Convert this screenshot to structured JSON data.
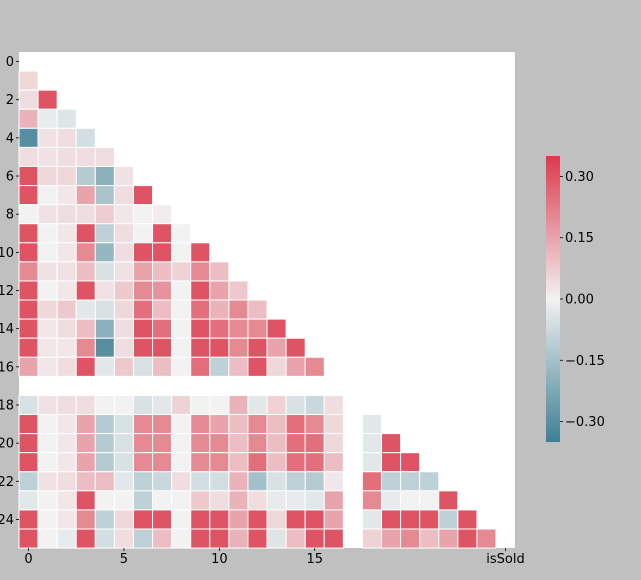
{
  "chart_data": {
    "type": "heatmap",
    "title": "",
    "xlabel": "",
    "ylabel": "",
    "mask": "upper-triangle-including-diagonal",
    "x_tick_labels": [
      "0",
      "5",
      "10",
      "15",
      "isSold"
    ],
    "y_tick_labels": [
      "0",
      "2",
      "4",
      "6",
      "8",
      "10",
      "12",
      "14",
      "16",
      "18",
      "20",
      "22",
      "24"
    ],
    "colorbar": {
      "ticks": [
        "0.30",
        "0.15",
        "0.00",
        "−0.15",
        "−0.30"
      ],
      "range": [
        -0.35,
        0.35
      ],
      "low_color": "#3d7f94",
      "mid_color": "#f2f2f2",
      "high_color": "#dc3a4c"
    },
    "matrix": [
      [
        null,
        null,
        null,
        null,
        null,
        null,
        null,
        null,
        null,
        null,
        null,
        null,
        null,
        null,
        null,
        null,
        null,
        null,
        null,
        null,
        null,
        null,
        null,
        null,
        null,
        null
      ],
      [
        0.05,
        null,
        null,
        null,
        null,
        null,
        null,
        null,
        null,
        null,
        null,
        null,
        null,
        null,
        null,
        null,
        null,
        null,
        null,
        null,
        null,
        null,
        null,
        null,
        null,
        null
      ],
      [
        0.04,
        0.3,
        null,
        null,
        null,
        null,
        null,
        null,
        null,
        null,
        null,
        null,
        null,
        null,
        null,
        null,
        null,
        null,
        null,
        null,
        null,
        null,
        null,
        null,
        null,
        null
      ],
      [
        0.12,
        -0.02,
        -0.04,
        null,
        null,
        null,
        null,
        null,
        null,
        null,
        null,
        null,
        null,
        null,
        null,
        null,
        null,
        null,
        null,
        null,
        null,
        null,
        null,
        null,
        null,
        null
      ],
      [
        -0.3,
        0.03,
        0.04,
        -0.06,
        null,
        null,
        null,
        null,
        null,
        null,
        null,
        null,
        null,
        null,
        null,
        null,
        null,
        null,
        null,
        null,
        null,
        null,
        null,
        null,
        null,
        null
      ],
      [
        0.04,
        0.03,
        0.04,
        0.04,
        0.04,
        null,
        null,
        null,
        null,
        null,
        null,
        null,
        null,
        null,
        null,
        null,
        null,
        null,
        null,
        null,
        null,
        null,
        null,
        null,
        null,
        null
      ],
      [
        0.3,
        0.05,
        0.05,
        -0.12,
        -0.2,
        0.03,
        null,
        null,
        null,
        null,
        null,
        null,
        null,
        null,
        null,
        null,
        null,
        null,
        null,
        null,
        null,
        null,
        null,
        null,
        null,
        null
      ],
      [
        0.3,
        0.0,
        0.02,
        0.15,
        -0.14,
        0.04,
        0.3,
        null,
        null,
        null,
        null,
        null,
        null,
        null,
        null,
        null,
        null,
        null,
        null,
        null,
        null,
        null,
        null,
        null,
        null,
        null
      ],
      [
        0.0,
        0.03,
        0.04,
        0.04,
        0.07,
        0.02,
        0.0,
        0.01,
        null,
        null,
        null,
        null,
        null,
        null,
        null,
        null,
        null,
        null,
        null,
        null,
        null,
        null,
        null,
        null,
        null,
        null
      ],
      [
        0.3,
        0.0,
        0.02,
        0.3,
        -0.1,
        0.04,
        0.0,
        0.3,
        0.0,
        null,
        null,
        null,
        null,
        null,
        null,
        null,
        null,
        null,
        null,
        null,
        null,
        null,
        null,
        null,
        null,
        null
      ],
      [
        0.3,
        0.0,
        0.02,
        0.2,
        -0.18,
        0.04,
        0.3,
        0.3,
        0.0,
        0.3,
        null,
        null,
        null,
        null,
        null,
        null,
        null,
        null,
        null,
        null,
        null,
        null,
        null,
        null,
        null,
        null
      ],
      [
        0.2,
        0.03,
        0.03,
        0.1,
        -0.05,
        0.03,
        0.15,
        0.1,
        0.06,
        0.2,
        0.1,
        null,
        null,
        null,
        null,
        null,
        null,
        null,
        null,
        null,
        null,
        null,
        null,
        null,
        null,
        null
      ],
      [
        0.3,
        0.0,
        0.02,
        0.3,
        0.03,
        0.08,
        0.2,
        0.18,
        0.0,
        0.3,
        0.15,
        0.08,
        null,
        null,
        null,
        null,
        null,
        null,
        null,
        null,
        null,
        null,
        null,
        null,
        null,
        null
      ],
      [
        0.3,
        0.05,
        0.08,
        -0.03,
        -0.05,
        0.05,
        0.25,
        0.1,
        0.0,
        0.25,
        0.12,
        0.2,
        0.1,
        null,
        null,
        null,
        null,
        null,
        null,
        null,
        null,
        null,
        null,
        null,
        null,
        null
      ],
      [
        0.3,
        0.02,
        0.04,
        0.1,
        -0.2,
        0.04,
        0.3,
        0.25,
        0.0,
        0.3,
        0.25,
        0.2,
        0.2,
        0.3,
        null,
        null,
        null,
        null,
        null,
        null,
        null,
        null,
        null,
        null,
        null,
        null
      ],
      [
        0.3,
        0.02,
        0.02,
        0.2,
        -0.3,
        0.04,
        0.3,
        0.3,
        0.0,
        0.3,
        0.3,
        0.2,
        0.3,
        0.15,
        0.3,
        null,
        null,
        null,
        null,
        null,
        null,
        null,
        null,
        null,
        null,
        null
      ],
      [
        0.15,
        0.02,
        0.04,
        0.3,
        -0.03,
        0.08,
        -0.05,
        0.1,
        0.0,
        0.25,
        -0.1,
        0.1,
        0.3,
        0.05,
        0.15,
        0.2,
        null,
        null,
        null,
        null,
        null,
        null,
        null,
        null,
        null,
        null
      ],
      [
        null,
        null,
        null,
        null,
        null,
        null,
        null,
        null,
        null,
        null,
        null,
        null,
        null,
        null,
        null,
        null,
        null,
        null,
        null,
        null,
        null,
        null,
        null,
        null,
        null,
        null
      ],
      [
        -0.05,
        0.03,
        0.04,
        0.04,
        0.0,
        0.0,
        -0.05,
        -0.03,
        0.06,
        0.0,
        0.0,
        0.12,
        -0.03,
        0.06,
        -0.05,
        -0.08,
        0.04,
        null,
        null,
        null,
        null,
        null,
        null,
        null,
        null,
        null
      ],
      [
        0.3,
        0.0,
        0.02,
        0.15,
        -0.12,
        -0.05,
        0.2,
        0.2,
        0.0,
        0.2,
        0.15,
        0.1,
        0.2,
        0.1,
        0.25,
        0.2,
        0.05,
        null,
        -0.03,
        null,
        null,
        null,
        null,
        null,
        null,
        null
      ],
      [
        0.3,
        0.0,
        0.02,
        0.15,
        -0.12,
        -0.05,
        0.2,
        0.2,
        0.0,
        0.2,
        0.2,
        0.1,
        0.2,
        0.1,
        0.25,
        0.25,
        0.05,
        null,
        -0.03,
        0.3,
        null,
        null,
        null,
        null,
        null,
        null
      ],
      [
        0.3,
        0.0,
        0.02,
        0.15,
        -0.12,
        -0.05,
        0.2,
        0.2,
        0.0,
        0.2,
        0.2,
        0.1,
        0.25,
        0.1,
        0.25,
        0.25,
        0.1,
        null,
        -0.03,
        0.3,
        0.3,
        null,
        null,
        null,
        null,
        null
      ],
      [
        -0.1,
        0.03,
        0.04,
        0.1,
        0.1,
        -0.03,
        -0.1,
        -0.08,
        0.04,
        -0.06,
        -0.06,
        0.12,
        -0.15,
        -0.05,
        -0.1,
        -0.12,
        0.02,
        null,
        0.25,
        -0.1,
        -0.1,
        -0.1,
        null,
        null,
        null,
        null
      ],
      [
        -0.03,
        0.0,
        0.02,
        0.3,
        0.0,
        0.0,
        -0.1,
        0.0,
        0.0,
        0.08,
        0.04,
        0.12,
        0.04,
        -0.02,
        -0.02,
        -0.03,
        0.15,
        null,
        0.2,
        -0.02,
        0.0,
        0.0,
        0.3,
        null,
        null,
        null
      ],
      [
        0.3,
        0.0,
        0.02,
        0.2,
        -0.1,
        0.05,
        0.3,
        0.3,
        0.0,
        0.3,
        0.3,
        0.15,
        0.3,
        0.05,
        0.3,
        0.3,
        0.15,
        null,
        -0.03,
        0.3,
        0.3,
        0.3,
        -0.1,
        0.3,
        null,
        null
      ],
      [
        0.3,
        0.0,
        -0.02,
        0.3,
        -0.06,
        0.04,
        -0.1,
        0.1,
        0.0,
        0.3,
        0.3,
        0.12,
        0.3,
        -0.04,
        0.1,
        0.3,
        0.3,
        null,
        0.06,
        0.15,
        0.2,
        0.1,
        0.15,
        0.3,
        0.2,
        null
      ]
    ]
  }
}
